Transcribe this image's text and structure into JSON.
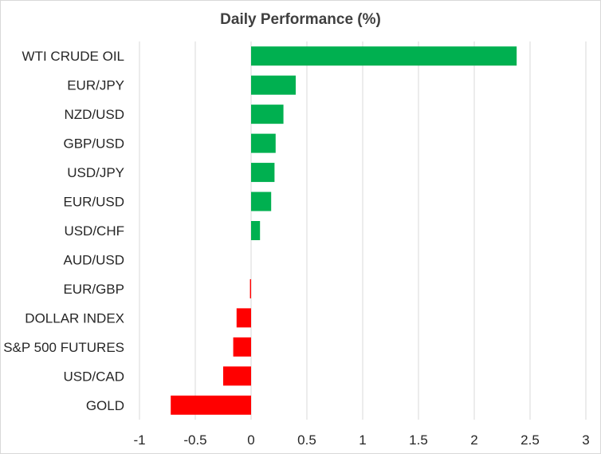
{
  "chart_data": {
    "type": "bar",
    "orientation": "horizontal",
    "title": "Daily Performance (%)",
    "categories": [
      "WTI CRUDE OIL",
      "EUR/JPY",
      "NZD/USD",
      "GBP/USD",
      "USD/JPY",
      "EUR/USD",
      "USD/CHF",
      "AUD/USD",
      "EUR/GBP",
      "DOLLAR INDEX",
      "S&P 500 FUTURES",
      "USD/CAD",
      "GOLD"
    ],
    "values": [
      2.38,
      0.4,
      0.29,
      0.22,
      0.21,
      0.18,
      0.08,
      0.0,
      -0.01,
      -0.13,
      -0.16,
      -0.25,
      -0.72
    ],
    "xlim": [
      -1,
      3
    ],
    "xticks": [
      -1,
      -0.5,
      0,
      0.5,
      1,
      1.5,
      2,
      2.5,
      3
    ],
    "xtick_labels": [
      "-1",
      "-0.5",
      "0",
      "0.5",
      "1",
      "1.5",
      "2",
      "2.5",
      "3"
    ],
    "grid": "vertical",
    "legend": "none",
    "colors": {
      "positive": "#00b050",
      "negative": "#ff0000",
      "grid": "#d9d9d9",
      "text": "#262626"
    }
  }
}
